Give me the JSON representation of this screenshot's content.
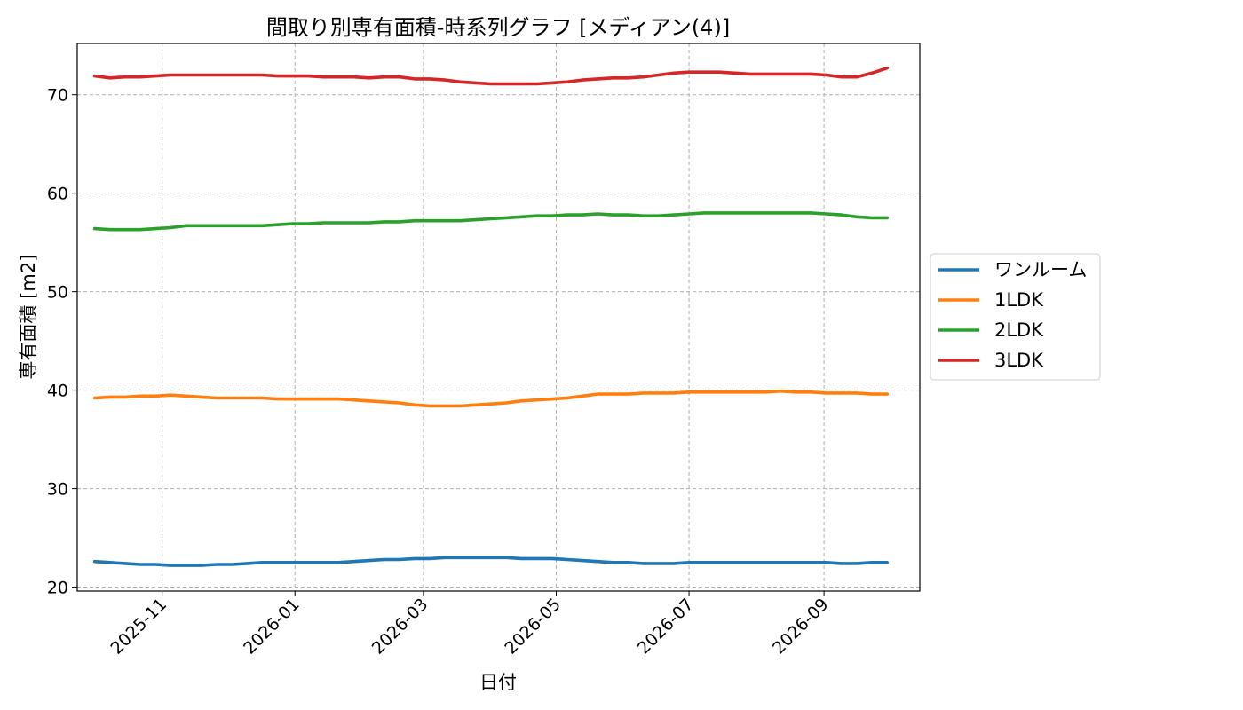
{
  "chart_data": {
    "type": "line",
    "title": "間取り別専有面積-時系列グラフ [メディアン(4)]",
    "xlabel": "日付",
    "ylabel": "専有面積 [m2]",
    "xlim": [
      "2025-09-23",
      "2026-10-15"
    ],
    "ylim": [
      19.6,
      75.2
    ],
    "yticks": [
      20,
      30,
      40,
      50,
      60,
      70
    ],
    "xticks": [
      "2025-11",
      "2026-01",
      "2026-03",
      "2026-05",
      "2026-07",
      "2026-09"
    ],
    "grid": true,
    "legend_position": "center-right, outside plot",
    "x": [
      "2025-10-01",
      "2025-10-08",
      "2025-10-15",
      "2025-10-22",
      "2025-10-29",
      "2025-11-05",
      "2025-11-12",
      "2025-11-19",
      "2025-11-26",
      "2025-12-03",
      "2025-12-10",
      "2025-12-17",
      "2025-12-24",
      "2025-12-31",
      "2026-01-07",
      "2026-01-14",
      "2026-01-21",
      "2026-01-28",
      "2026-02-04",
      "2026-02-11",
      "2026-02-18",
      "2026-02-25",
      "2026-03-04",
      "2026-03-11",
      "2026-03-18",
      "2026-03-25",
      "2026-04-01",
      "2026-04-08",
      "2026-04-15",
      "2026-04-22",
      "2026-04-29",
      "2026-05-06",
      "2026-05-13",
      "2026-05-20",
      "2026-05-27",
      "2026-06-03",
      "2026-06-10",
      "2026-06-17",
      "2026-06-24",
      "2026-07-01",
      "2026-07-08",
      "2026-07-15",
      "2026-07-22",
      "2026-07-29",
      "2026-08-05",
      "2026-08-12",
      "2026-08-19",
      "2026-08-26",
      "2026-09-02",
      "2026-09-09",
      "2026-09-16",
      "2026-09-23",
      "2026-09-30"
    ],
    "series": [
      {
        "name": "ワンルーム",
        "color": "#1f77b4",
        "values": [
          22.6,
          22.5,
          22.4,
          22.3,
          22.3,
          22.2,
          22.2,
          22.2,
          22.3,
          22.3,
          22.4,
          22.5,
          22.5,
          22.5,
          22.5,
          22.5,
          22.5,
          22.6,
          22.7,
          22.8,
          22.8,
          22.9,
          22.9,
          23.0,
          23.0,
          23.0,
          23.0,
          23.0,
          22.9,
          22.9,
          22.9,
          22.8,
          22.7,
          22.6,
          22.5,
          22.5,
          22.4,
          22.4,
          22.4,
          22.5,
          22.5,
          22.5,
          22.5,
          22.5,
          22.5,
          22.5,
          22.5,
          22.5,
          22.5,
          22.4,
          22.4,
          22.5,
          22.5
        ]
      },
      {
        "name": "1LDK",
        "color": "#ff7f0e",
        "values": [
          39.2,
          39.3,
          39.3,
          39.4,
          39.4,
          39.5,
          39.4,
          39.3,
          39.2,
          39.2,
          39.2,
          39.2,
          39.1,
          39.1,
          39.1,
          39.1,
          39.1,
          39.0,
          38.9,
          38.8,
          38.7,
          38.5,
          38.4,
          38.4,
          38.4,
          38.5,
          38.6,
          38.7,
          38.9,
          39.0,
          39.1,
          39.2,
          39.4,
          39.6,
          39.6,
          39.6,
          39.7,
          39.7,
          39.7,
          39.8,
          39.8,
          39.8,
          39.8,
          39.8,
          39.8,
          39.9,
          39.8,
          39.8,
          39.7,
          39.7,
          39.7,
          39.6,
          39.6
        ]
      },
      {
        "name": "2LDK",
        "color": "#2ca02c",
        "values": [
          56.4,
          56.3,
          56.3,
          56.3,
          56.4,
          56.5,
          56.7,
          56.7,
          56.7,
          56.7,
          56.7,
          56.7,
          56.8,
          56.9,
          56.9,
          57.0,
          57.0,
          57.0,
          57.0,
          57.1,
          57.1,
          57.2,
          57.2,
          57.2,
          57.2,
          57.3,
          57.4,
          57.5,
          57.6,
          57.7,
          57.7,
          57.8,
          57.8,
          57.9,
          57.8,
          57.8,
          57.7,
          57.7,
          57.8,
          57.9,
          58.0,
          58.0,
          58.0,
          58.0,
          58.0,
          58.0,
          58.0,
          58.0,
          57.9,
          57.8,
          57.6,
          57.5,
          57.5
        ]
      },
      {
        "name": "3LDK",
        "color": "#d62728",
        "values": [
          71.9,
          71.7,
          71.8,
          71.8,
          71.9,
          72.0,
          72.0,
          72.0,
          72.0,
          72.0,
          72.0,
          72.0,
          71.9,
          71.9,
          71.9,
          71.8,
          71.8,
          71.8,
          71.7,
          71.8,
          71.8,
          71.6,
          71.6,
          71.5,
          71.3,
          71.2,
          71.1,
          71.1,
          71.1,
          71.1,
          71.2,
          71.3,
          71.5,
          71.6,
          71.7,
          71.7,
          71.8,
          72.0,
          72.2,
          72.3,
          72.3,
          72.3,
          72.2,
          72.1,
          72.1,
          72.1,
          72.1,
          72.1,
          72.0,
          71.8,
          71.8,
          72.2,
          72.7
        ]
      }
    ]
  }
}
